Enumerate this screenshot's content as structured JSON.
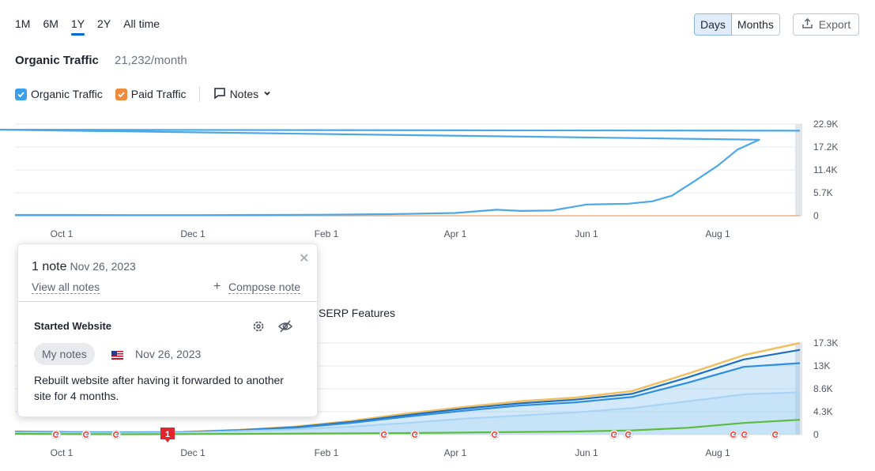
{
  "range_tabs": [
    "1M",
    "6M",
    "1Y",
    "2Y",
    "All time"
  ],
  "active_range": "1Y",
  "granularity": {
    "days": "Days",
    "months": "Months",
    "active": "Days"
  },
  "export_label": "Export",
  "section": {
    "title": "Organic Traffic",
    "value": "21,232/month"
  },
  "legend": {
    "organic": "Organic Traffic",
    "paid": "Paid Traffic",
    "notes": "Notes"
  },
  "colors": {
    "accent": "#006dca",
    "organic_line": "#4aa8e8",
    "paid": "#f08a3c",
    "green": "#5cbc3c"
  },
  "note_popup": {
    "count": "1 note",
    "date": "Nov 26, 2023",
    "view_all": "View all notes",
    "compose": "Compose note",
    "note_title": "Started Website",
    "note_tag": "My notes",
    "note_date": "Nov 26, 2023",
    "note_text": "Rebuilt website after having it forwarded to another site for 4 months."
  },
  "lower_legend_fragment": "SERP Features",
  "note_marker": "1",
  "chart_data": [
    {
      "type": "line",
      "title": "Organic Traffic",
      "x_ticks": [
        "Oct 1",
        "Dec 1",
        "Feb 1",
        "Apr 1",
        "Jun 1",
        "Aug 1"
      ],
      "y_ticks": [
        "0",
        "5.7K",
        "11.4K",
        "17.2K",
        "22.9K"
      ],
      "ylim": [
        0,
        22900
      ],
      "grid": true,
      "series": [
        {
          "name": "Organic Traffic",
          "x": [
            "Sep 10",
            "Oct 1",
            "Nov 1",
            "Dec 1",
            "Jan 1",
            "Feb 1",
            "Mar 1",
            "Apr 1",
            "Apr 20",
            "May 1",
            "May 15",
            "Jun 1",
            "Jun 20",
            "Jul 1",
            "Jul 10",
            "Jul 20",
            "Aug 1",
            "Aug 10",
            "Aug 20",
            "Sep 1",
            "Sep 10"
          ],
          "values": [
            200,
            200,
            150,
            150,
            200,
            250,
            400,
            700,
            1500,
            1200,
            1300,
            2800,
            3000,
            3600,
            5000,
            8500,
            12500,
            16500,
            19000,
            21500,
            21232
          ]
        },
        {
          "name": "Paid Traffic",
          "x": [
            "Sep 10",
            "Sep 10"
          ],
          "values": [
            0,
            0
          ]
        }
      ]
    },
    {
      "type": "area",
      "x_ticks": [
        "Oct 1",
        "Dec 1",
        "Feb 1",
        "Apr 1",
        "Jun 1",
        "Aug 1"
      ],
      "y_ticks": [
        "0",
        "4.3K",
        "8.6K",
        "13K",
        "17.3K"
      ],
      "ylim": [
        0,
        17300
      ],
      "grid": true,
      "series": [
        {
          "values": [
            600,
            500,
            450,
            500,
            900,
            1500,
            2600,
            4000,
            5200,
            6300,
            7000,
            8200,
            11500,
            15000,
            17300
          ]
        },
        {
          "values": [
            550,
            450,
            420,
            480,
            850,
            1400,
            2400,
            3700,
            4900,
            5900,
            6600,
            7700,
            10800,
            14200,
            16000
          ]
        },
        {
          "values": [
            500,
            420,
            400,
            450,
            800,
            1300,
            2200,
            3400,
            4500,
            5500,
            6100,
            7100,
            9800,
            12800,
            13500
          ]
        },
        {
          "values": [
            400,
            350,
            330,
            380,
            650,
            1000,
            1500,
            2200,
            3000,
            3600,
            4200,
            5000,
            6300,
            7600,
            8000
          ]
        },
        {
          "values": [
            150,
            100,
            80,
            100,
            150,
            200,
            250,
            300,
            400,
            500,
            600,
            800,
            1300,
            2200,
            2800
          ]
        }
      ]
    }
  ]
}
